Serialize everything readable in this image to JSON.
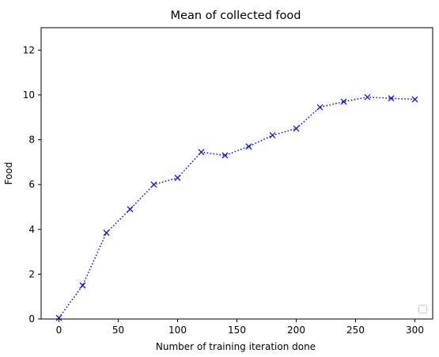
{
  "chart_data": {
    "type": "line",
    "title": "Mean of collected food",
    "xlabel": "Number of training iteration done",
    "ylabel": "Food",
    "xlim": [
      -15,
      315
    ],
    "ylim": [
      0,
      13
    ],
    "xticks": [
      0,
      50,
      100,
      150,
      200,
      250,
      300
    ],
    "yticks": [
      0,
      2,
      4,
      6,
      8,
      10,
      12
    ],
    "grid": false,
    "legend": "lower right",
    "series": [
      {
        "color": "#0000ff",
        "line_style": "dotted",
        "marker": "x",
        "x": [
          0,
          20,
          40,
          60,
          80,
          100,
          120,
          140,
          160,
          180,
          200,
          220,
          240,
          260,
          280,
          300
        ],
        "y": [
          0.05,
          1.5,
          3.85,
          4.9,
          6.0,
          6.3,
          7.45,
          7.3,
          7.7,
          8.2,
          8.5,
          9.45,
          9.7,
          9.9,
          9.85,
          9.8
        ]
      }
    ]
  }
}
